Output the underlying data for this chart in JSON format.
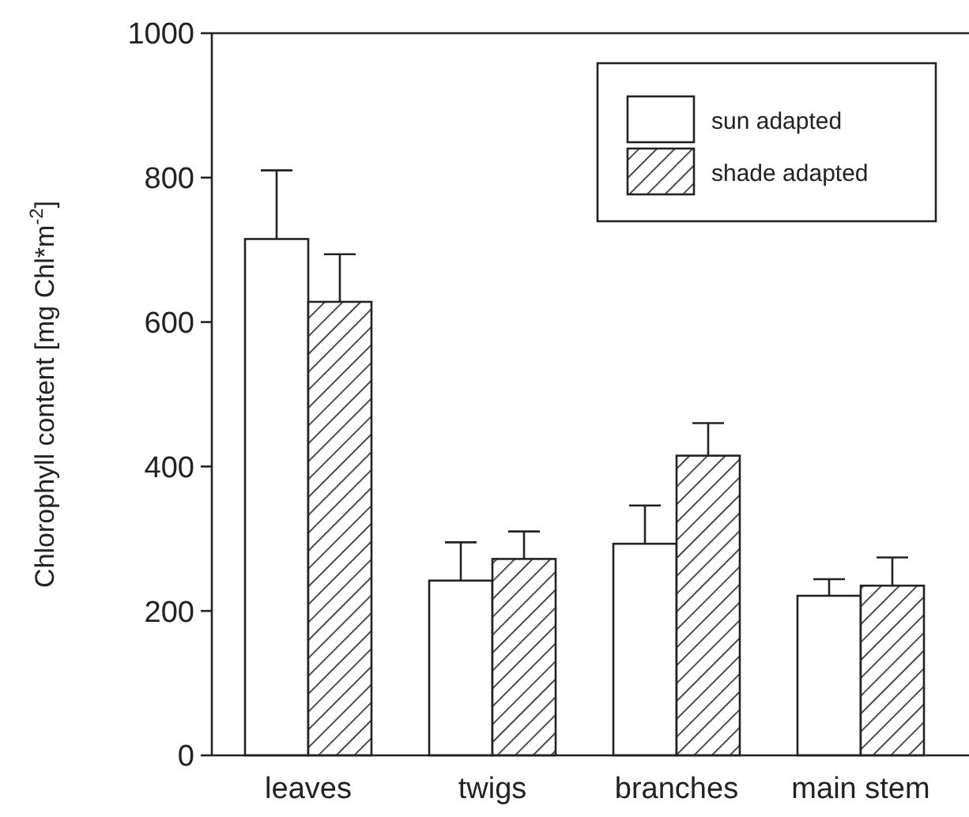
{
  "chart_data": {
    "type": "bar",
    "ylabel": "Chlorophyll content [mg Chl*m$^{-2}$]",
    "categories": [
      "leaves",
      "twigs",
      "branches",
      "main stem"
    ],
    "series": [
      {
        "name": "sun adapted",
        "color": "#ffffff",
        "values": [
          715,
          242,
          293,
          221
        ],
        "errors": [
          [
            715,
            810
          ],
          [
            242,
            295
          ],
          [
            293,
            346
          ],
          [
            221,
            244
          ]
        ]
      },
      {
        "name": "shade adapted",
        "color": "#222222",
        "values": [
          628,
          272,
          415,
          235
        ],
        "errors": [
          [
            628,
            694
          ],
          [
            272,
            310
          ],
          [
            415,
            460
          ],
          [
            235,
            274
          ]
        ]
      }
    ],
    "ylim": [
      0,
      1000
    ],
    "yticks": [
      0,
      200,
      400,
      600,
      800,
      1000
    ],
    "legend": "top right",
    "grid": false
  }
}
